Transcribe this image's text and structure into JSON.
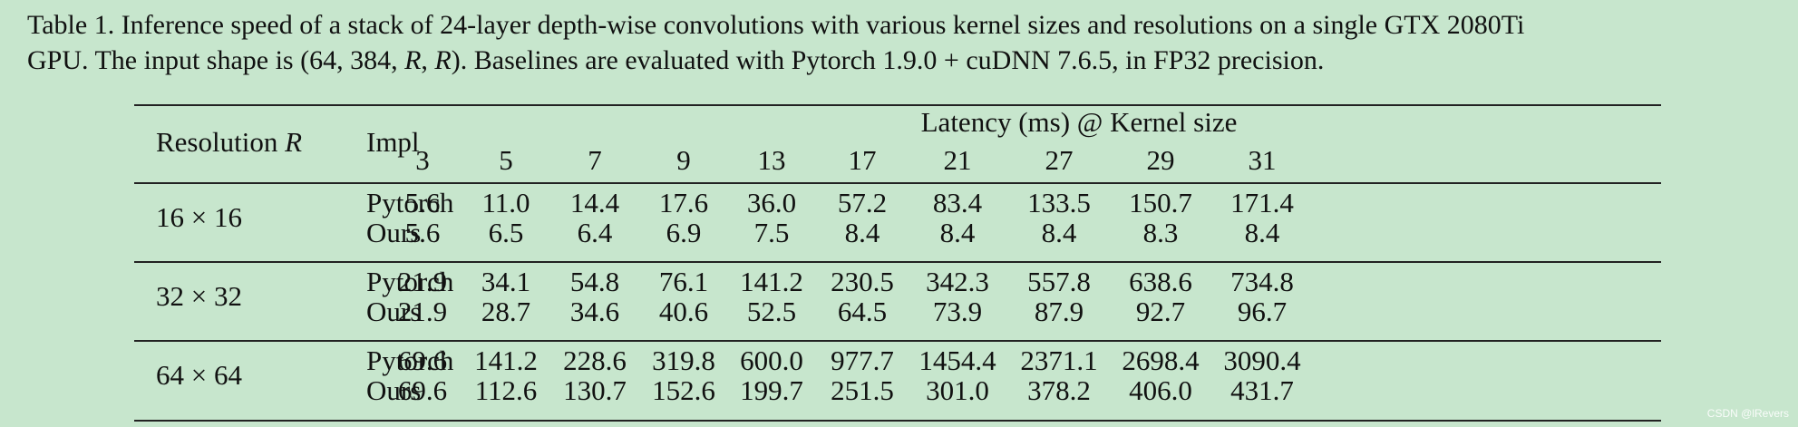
{
  "caption": {
    "line1": "Table 1. Inference speed of a stack of 24-layer depth-wise convolutions with various kernel sizes and resolutions on a single GTX 2080Ti",
    "line2_pre": "GPU. The input shape is (64, 384, ",
    "line2_var1": "R",
    "line2_sep": ", ",
    "line2_var2": "R",
    "line2_post": "). Baselines are evaluated with Pytorch 1.9.0 + cuDNN 7.6.5, in FP32 precision."
  },
  "table": {
    "header": {
      "resolution_label": "Resolution",
      "resolution_var": "R",
      "impl_label": "Impl",
      "latency_label": "Latency (ms) @ Kernel size",
      "kernel_sizes": [
        "3",
        "5",
        "7",
        "9",
        "13",
        "17",
        "21",
        "27",
        "29",
        "31"
      ]
    },
    "groups": [
      {
        "resolution": "16 × 16",
        "rows": [
          {
            "impl": "Pytorch",
            "values": [
              "5.6",
              "11.0",
              "14.4",
              "17.6",
              "36.0",
              "57.2",
              "83.4",
              "133.5",
              "150.7",
              "171.4"
            ]
          },
          {
            "impl": "Ours",
            "values": [
              "5.6",
              "6.5",
              "6.4",
              "6.9",
              "7.5",
              "8.4",
              "8.4",
              "8.4",
              "8.3",
              "8.4"
            ]
          }
        ]
      },
      {
        "resolution": "32 × 32",
        "rows": [
          {
            "impl": "Pytorch",
            "values": [
              "21.9",
              "34.1",
              "54.8",
              "76.1",
              "141.2",
              "230.5",
              "342.3",
              "557.8",
              "638.6",
              "734.8"
            ]
          },
          {
            "impl": "Ours",
            "values": [
              "21.9",
              "28.7",
              "34.6",
              "40.6",
              "52.5",
              "64.5",
              "73.9",
              "87.9",
              "92.7",
              "96.7"
            ]
          }
        ]
      },
      {
        "resolution": "64 × 64",
        "rows": [
          {
            "impl": "Pytorch",
            "values": [
              "69.6",
              "141.2",
              "228.6",
              "319.8",
              "600.0",
              "977.7",
              "1454.4",
              "2371.1",
              "2698.4",
              "3090.4"
            ]
          },
          {
            "impl": "Ours",
            "values": [
              "69.6",
              "112.6",
              "130.7",
              "152.6",
              "199.7",
              "251.5",
              "301.0",
              "378.2",
              "406.0",
              "431.7"
            ]
          }
        ]
      }
    ]
  },
  "watermark": "CSDN @lRevers"
}
